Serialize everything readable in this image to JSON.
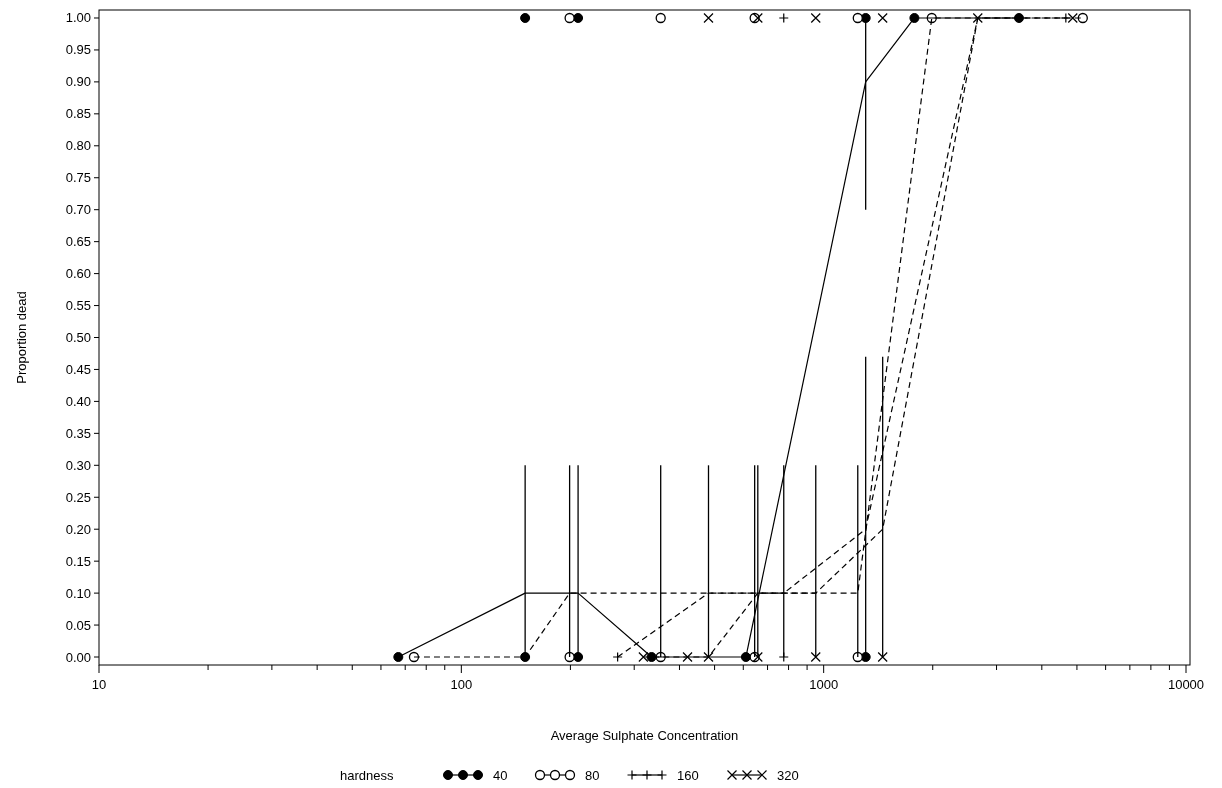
{
  "chart_data": {
    "type": "scatter",
    "xlabel": "Average Sulphate Concentration",
    "ylabel": "Proportion dead",
    "legend_title": "hardness",
    "legend": "bottom",
    "log": "x",
    "grid": false,
    "xlim": [
      10,
      10000
    ],
    "xticks": [
      10,
      {
        "value": 20,
        "label": null
      },
      {
        "value": 30,
        "label": null
      },
      {
        "value": 40,
        "label": null
      },
      {
        "value": 50,
        "label": null
      },
      {
        "value": 60,
        "label": null
      },
      {
        "value": 70,
        "label": null
      },
      {
        "value": 80,
        "label": null
      },
      {
        "value": 90,
        "label": null
      },
      100,
      {
        "value": 200,
        "label": null
      },
      {
        "value": 300,
        "label": null
      },
      {
        "value": 400,
        "label": null
      },
      {
        "value": 500,
        "label": null
      },
      {
        "value": 600,
        "label": null
      },
      {
        "value": 700,
        "label": null
      },
      {
        "value": 800,
        "label": null
      },
      {
        "value": 900,
        "label": null
      },
      1000,
      {
        "value": 2000,
        "label": null
      },
      {
        "value": 3000,
        "label": null
      },
      {
        "value": 4000,
        "label": null
      },
      {
        "value": 5000,
        "label": null
      },
      {
        "value": 6000,
        "label": null
      },
      {
        "value": 7000,
        "label": null
      },
      {
        "value": 8000,
        "label": null
      },
      {
        "value": 9000,
        "label": null
      },
      10000
    ],
    "ylim": [
      -0.0125,
      1.0125
    ],
    "yticks": [
      {
        "value": 0,
        "label": "0.00"
      },
      {
        "value": 0.05,
        "label": "0.05"
      },
      {
        "value": 0.1,
        "label": "0.10"
      },
      {
        "value": 0.15,
        "label": "0.15"
      },
      {
        "value": 0.2,
        "label": "0.20"
      },
      {
        "value": 0.25,
        "label": "0.25"
      },
      {
        "value": 0.3,
        "label": "0.30"
      },
      {
        "value": 0.35,
        "label": "0.35"
      },
      {
        "value": 0.4,
        "label": "0.40"
      },
      {
        "value": 0.45,
        "label": "0.45"
      },
      {
        "value": 0.5,
        "label": "0.50"
      },
      {
        "value": 0.55,
        "label": "0.55"
      },
      {
        "value": 0.6,
        "label": "0.60"
      },
      {
        "value": 0.65,
        "label": "0.65"
      },
      {
        "value": 0.7,
        "label": "0.70"
      },
      {
        "value": 0.75,
        "label": "0.75"
      },
      {
        "value": 0.8,
        "label": "0.80"
      },
      {
        "value": 0.85,
        "label": "0.85"
      },
      {
        "value": 0.9,
        "label": "0.90"
      },
      {
        "value": 0.95,
        "label": "0.95"
      },
      {
        "value": 1,
        "label": "1.00"
      }
    ],
    "series": [
      {
        "name": "40",
        "marker": "circle",
        "color": "#000000",
        "x": [
          67,
          150,
          210,
          335,
          610,
          1306,
          150,
          210,
          1306,
          1780,
          3460
        ],
        "values": [
          0,
          0,
          0,
          0,
          0,
          0,
          1,
          1,
          1,
          1,
          1
        ]
      },
      {
        "name": "80",
        "marker": "circle-open",
        "color": "#000000",
        "x": [
          74,
          199,
          355,
          645,
          1242,
          199,
          355,
          645,
          1242,
          1988,
          5190
        ],
        "values": [
          0,
          0,
          0,
          0,
          0,
          1,
          1,
          1,
          1,
          1,
          1
        ]
      },
      {
        "name": "160",
        "marker": "plus",
        "color": "#000000",
        "x": [
          270,
          776,
          776,
          4660
        ],
        "values": [
          0,
          0,
          1,
          1
        ]
      },
      {
        "name": "320",
        "marker": "x",
        "color": "#000000",
        "x": [
          318,
          421,
          481,
          658,
          951,
          1455,
          481,
          658,
          951,
          1455,
          2663,
          4870
        ],
        "values": [
          0,
          0,
          0,
          0,
          0,
          0,
          1,
          1,
          1,
          1,
          1,
          1
        ]
      },
      {
        "type": "line",
        "line_style": "solid",
        "color": "#000000",
        "x": [
          67,
          150,
          210,
          335,
          610,
          1306,
          1780,
          3460
        ],
        "values": [
          0,
          0.1,
          0.1,
          0,
          0,
          0.9,
          1,
          1
        ],
        "errors": [
          null,
          [
            0,
            0.3
          ],
          [
            0,
            0.3
          ],
          null,
          null,
          [
            0.7,
            1
          ],
          null,
          null
        ]
      },
      {
        "type": "line",
        "line_style": "dashed",
        "color": "#000000",
        "x": [
          74,
          150,
          199,
          355,
          645,
          1242,
          1988,
          5190
        ],
        "values": [
          0,
          0,
          0.1,
          0.1,
          0.1,
          0.1,
          1,
          1
        ],
        "errors": [
          null,
          null,
          [
            0,
            0.3
          ],
          [
            0,
            0.3
          ],
          [
            0,
            0.3
          ],
          [
            0,
            0.3
          ],
          null,
          null
        ]
      },
      {
        "type": "line",
        "line_style": "dashed",
        "color": "#000000",
        "x": [
          270,
          481,
          776,
          1306,
          2663,
          4660
        ],
        "values": [
          0,
          0.1,
          0.1,
          0.2,
          1,
          1
        ],
        "errors": [
          null,
          [
            0,
            0.3
          ],
          [
            0,
            0.3
          ],
          [
            0,
            0.47
          ],
          null,
          null
        ]
      },
      {
        "type": "line",
        "line_style": "dashed",
        "color": "#000000",
        "x": [
          318,
          421,
          481,
          658,
          951,
          1455,
          2663,
          4870
        ],
        "values": [
          0,
          0,
          0,
          0.1,
          0.1,
          0.2,
          1,
          1
        ],
        "errors": [
          null,
          null,
          null,
          [
            0,
            0.3
          ],
          [
            0,
            0.3
          ],
          [
            0,
            0.47
          ],
          null,
          null
        ]
      }
    ]
  }
}
